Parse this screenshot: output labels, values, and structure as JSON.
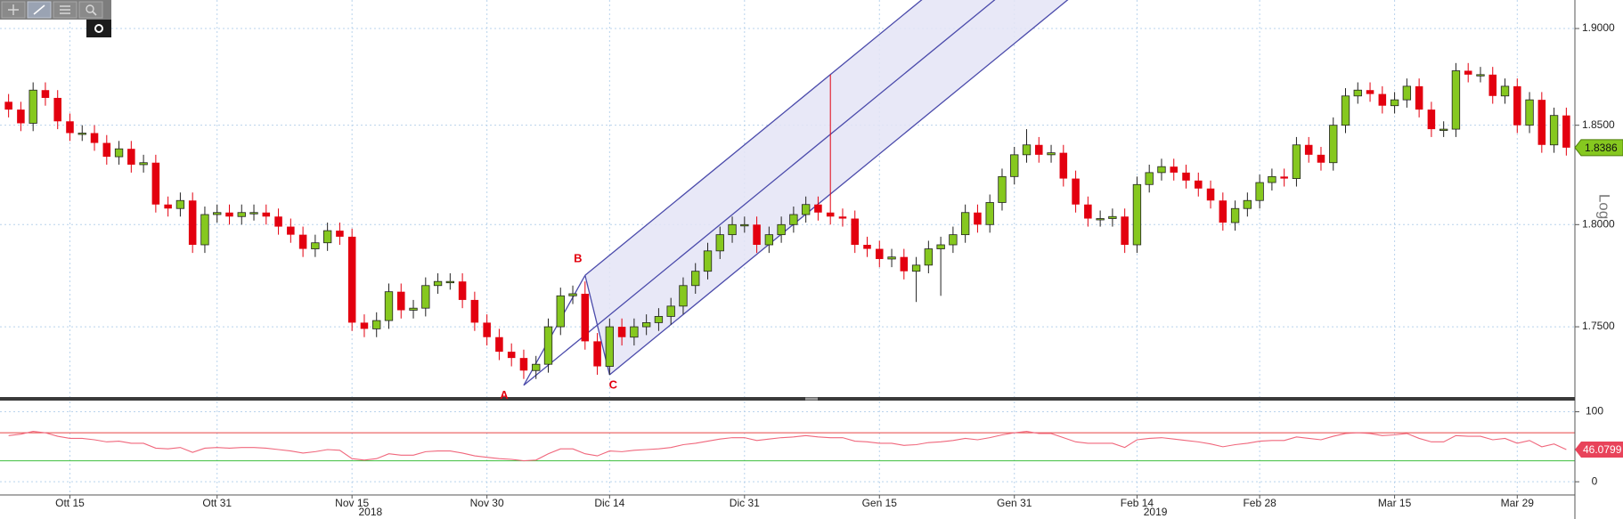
{
  "chart_data": {
    "type": "candlestick",
    "axis_label": "Log",
    "log_scale": true,
    "grid": true,
    "xlim": [
      -0.7,
      127.7
    ],
    "xticks": [
      {
        "value": 5,
        "label": "Ott 15"
      },
      {
        "value": 17,
        "label": "Ott 31"
      },
      {
        "value": 28,
        "label": "Nov 15"
      },
      {
        "value": 39,
        "label": "Nov 30"
      },
      {
        "value": 49,
        "label": "Dic 14"
      },
      {
        "value": 60,
        "label": "Dic 31"
      },
      {
        "value": 71,
        "label": "Gen 15"
      },
      {
        "value": 82,
        "label": "Gen 31"
      },
      {
        "value": 92,
        "label": "Feb 14"
      },
      {
        "value": 102,
        "label": "Feb 28"
      },
      {
        "value": 113,
        "label": "Mar 15"
      },
      {
        "value": 123,
        "label": "Mar 29"
      }
    ],
    "year_ticks": [
      {
        "value": 29.5,
        "label": "2018"
      },
      {
        "value": 93.5,
        "label": "2019"
      }
    ],
    "ylim": [
      1.716,
      1.915
    ],
    "yticks": [
      {
        "value": 1.75,
        "label": "1.7500"
      },
      {
        "value": 1.8,
        "label": "1.8000"
      },
      {
        "value": 1.85,
        "label": "1.8500"
      },
      {
        "value": 1.9,
        "label": "1.9000"
      }
    ],
    "up_color": "#86c81f",
    "down_color": "#e3000f",
    "series": [
      {
        "open": [
          1.862,
          1.858,
          1.851,
          1.868,
          1.864,
          1.852,
          1.846,
          1.846,
          1.841,
          1.834,
          1.838,
          1.83,
          1.831,
          1.81,
          1.808,
          1.812,
          1.79,
          1.805,
          1.806,
          1.804,
          1.806,
          1.806,
          1.804,
          1.799,
          1.795,
          1.788,
          1.791,
          1.797,
          1.794,
          1.752,
          1.749,
          1.753,
          1.767,
          1.758,
          1.759,
          1.77,
          1.772,
          1.772,
          1.763,
          1.752,
          1.745,
          1.738,
          1.735,
          1.729,
          1.732,
          1.75,
          1.765,
          1.766,
          1.743,
          1.731,
          1.75,
          1.745,
          1.75,
          1.752,
          1.755,
          1.76,
          1.77,
          1.777,
          1.787,
          1.795,
          1.8,
          1.8,
          1.79,
          1.795,
          1.8,
          1.805,
          1.81,
          1.806,
          1.804,
          1.803,
          1.79,
          1.788,
          1.783,
          1.784,
          1.777,
          1.78,
          1.788,
          1.79,
          1.795,
          1.806,
          1.8,
          1.811,
          1.824,
          1.835,
          1.84,
          1.835,
          1.836,
          1.823,
          1.81,
          1.803,
          1.803,
          1.804,
          1.79,
          1.82,
          1.826,
          1.829,
          1.826,
          1.822,
          1.818,
          1.812,
          1.801,
          1.808,
          1.812,
          1.821,
          1.824,
          1.823,
          1.84,
          1.835,
          1.831,
          1.85,
          1.865,
          1.868,
          1.866,
          1.86,
          1.863,
          1.87,
          1.858,
          1.848,
          1.848,
          1.878,
          1.876,
          1.876,
          1.865,
          1.87,
          1.85,
          1.863,
          1.84,
          1.855
        ],
        "high": [
          1.866,
          1.862,
          1.872,
          1.872,
          1.868,
          1.856,
          1.85,
          1.85,
          1.845,
          1.842,
          1.842,
          1.835,
          1.835,
          1.814,
          1.816,
          1.816,
          1.809,
          1.81,
          1.81,
          1.81,
          1.81,
          1.81,
          1.808,
          1.803,
          1.799,
          1.795,
          1.801,
          1.801,
          1.798,
          1.756,
          1.757,
          1.771,
          1.771,
          1.763,
          1.774,
          1.776,
          1.776,
          1.776,
          1.767,
          1.756,
          1.749,
          1.742,
          1.739,
          1.736,
          1.754,
          1.769,
          1.77,
          1.772,
          1.747,
          1.754,
          1.754,
          1.754,
          1.756,
          1.759,
          1.764,
          1.774,
          1.781,
          1.791,
          1.799,
          1.804,
          1.804,
          1.804,
          1.799,
          1.804,
          1.809,
          1.814,
          1.814,
          1.876,
          1.808,
          1.807,
          1.794,
          1.792,
          1.788,
          1.788,
          1.784,
          1.792,
          1.794,
          1.799,
          1.81,
          1.81,
          1.815,
          1.828,
          1.839,
          1.848,
          1.844,
          1.84,
          1.84,
          1.827,
          1.814,
          1.807,
          1.808,
          1.808,
          1.824,
          1.83,
          1.833,
          1.833,
          1.83,
          1.826,
          1.822,
          1.816,
          1.812,
          1.816,
          1.825,
          1.828,
          1.828,
          1.844,
          1.844,
          1.839,
          1.854,
          1.869,
          1.872,
          1.872,
          1.87,
          1.867,
          1.874,
          1.874,
          1.862,
          1.852,
          1.882,
          1.882,
          1.88,
          1.88,
          1.874,
          1.874,
          1.867,
          1.867,
          1.859,
          1.859
        ],
        "low": [
          1.854,
          1.847,
          1.847,
          1.86,
          1.848,
          1.842,
          1.842,
          1.837,
          1.83,
          1.83,
          1.826,
          1.826,
          1.806,
          1.804,
          1.804,
          1.786,
          1.786,
          1.801,
          1.8,
          1.8,
          1.802,
          1.8,
          1.795,
          1.791,
          1.784,
          1.784,
          1.787,
          1.79,
          1.748,
          1.745,
          1.745,
          1.749,
          1.754,
          1.754,
          1.755,
          1.766,
          1.768,
          1.759,
          1.748,
          1.741,
          1.734,
          1.731,
          1.725,
          1.725,
          1.728,
          1.746,
          1.761,
          1.739,
          1.727,
          1.727,
          1.741,
          1.741,
          1.746,
          1.748,
          1.751,
          1.756,
          1.766,
          1.773,
          1.783,
          1.791,
          1.796,
          1.786,
          1.786,
          1.791,
          1.796,
          1.801,
          1.802,
          1.8,
          1.799,
          1.786,
          1.784,
          1.779,
          1.779,
          1.773,
          1.762,
          1.776,
          1.765,
          1.786,
          1.791,
          1.796,
          1.796,
          1.807,
          1.82,
          1.831,
          1.831,
          1.831,
          1.819,
          1.806,
          1.799,
          1.799,
          1.799,
          1.786,
          1.786,
          1.816,
          1.822,
          1.822,
          1.818,
          1.814,
          1.808,
          1.797,
          1.797,
          1.804,
          1.808,
          1.817,
          1.819,
          1.819,
          1.831,
          1.827,
          1.827,
          1.846,
          1.861,
          1.862,
          1.856,
          1.856,
          1.859,
          1.854,
          1.844,
          1.844,
          1.844,
          1.872,
          1.872,
          1.861,
          1.861,
          1.846,
          1.846,
          1.836,
          1.836,
          1.8346
        ],
        "close": [
          1.858,
          1.851,
          1.868,
          1.864,
          1.852,
          1.846,
          1.846,
          1.841,
          1.834,
          1.838,
          1.83,
          1.831,
          1.81,
          1.808,
          1.812,
          1.79,
          1.805,
          1.806,
          1.804,
          1.806,
          1.806,
          1.804,
          1.799,
          1.795,
          1.788,
          1.791,
          1.797,
          1.794,
          1.752,
          1.749,
          1.753,
          1.767,
          1.758,
          1.759,
          1.77,
          1.772,
          1.772,
          1.763,
          1.752,
          1.745,
          1.738,
          1.735,
          1.729,
          1.732,
          1.75,
          1.765,
          1.766,
          1.743,
          1.731,
          1.75,
          1.745,
          1.75,
          1.752,
          1.755,
          1.76,
          1.77,
          1.777,
          1.787,
          1.795,
          1.8,
          1.8,
          1.79,
          1.795,
          1.8,
          1.805,
          1.81,
          1.806,
          1.804,
          1.803,
          1.79,
          1.788,
          1.783,
          1.784,
          1.777,
          1.78,
          1.788,
          1.79,
          1.795,
          1.806,
          1.8,
          1.811,
          1.824,
          1.835,
          1.84,
          1.835,
          1.836,
          1.823,
          1.81,
          1.803,
          1.803,
          1.804,
          1.79,
          1.82,
          1.826,
          1.829,
          1.826,
          1.822,
          1.818,
          1.812,
          1.801,
          1.808,
          1.812,
          1.821,
          1.824,
          1.823,
          1.84,
          1.835,
          1.831,
          1.85,
          1.865,
          1.868,
          1.866,
          1.86,
          1.863,
          1.87,
          1.858,
          1.848,
          1.848,
          1.878,
          1.876,
          1.876,
          1.865,
          1.87,
          1.85,
          1.863,
          1.84,
          1.855,
          1.8386
        ]
      }
    ],
    "pitchfork": {
      "color": "#4b4bab",
      "fill": "#e4e4f6",
      "label_color": "#e3000f",
      "points": [
        {
          "label": "A",
          "x": 42,
          "y": 1.722
        },
        {
          "label": "B",
          "x": 47,
          "y": 1.775
        },
        {
          "label": "C",
          "x": 49,
          "y": 1.727
        }
      ]
    },
    "indicator": {
      "type": "line",
      "color": "#f0677c",
      "ylim": [
        -17.6,
        114.7
      ],
      "yticks": [
        0,
        100
      ],
      "levels": [
        {
          "value": 70,
          "color": "#e84545"
        },
        {
          "value": 30,
          "color": "#3dbf3d"
        }
      ],
      "values": [
        66,
        68,
        72,
        70,
        65,
        62,
        62,
        60,
        57,
        58,
        55,
        55,
        48,
        47,
        49,
        42,
        48,
        49,
        48,
        49,
        49,
        48,
        46,
        44,
        41,
        43,
        46,
        45,
        33,
        31,
        33,
        40,
        38,
        38,
        43,
        44,
        44,
        41,
        37,
        35,
        33,
        32,
        30,
        31,
        40,
        47,
        47,
        40,
        37,
        44,
        43,
        45,
        46,
        47,
        49,
        53,
        55,
        58,
        61,
        63,
        63,
        59,
        61,
        63,
        64,
        66,
        64,
        63,
        63,
        58,
        57,
        55,
        55,
        52,
        53,
        56,
        57,
        59,
        62,
        60,
        63,
        67,
        70,
        72,
        69,
        69,
        63,
        57,
        55,
        55,
        55,
        49,
        60,
        62,
        63,
        61,
        59,
        57,
        54,
        50,
        53,
        55,
        58,
        59,
        59,
        64,
        62,
        60,
        65,
        69,
        70,
        69,
        66,
        67,
        69,
        62,
        57,
        57,
        66,
        65,
        65,
        60,
        62,
        55,
        59,
        50,
        54,
        46.0799
      ]
    }
  }
}
